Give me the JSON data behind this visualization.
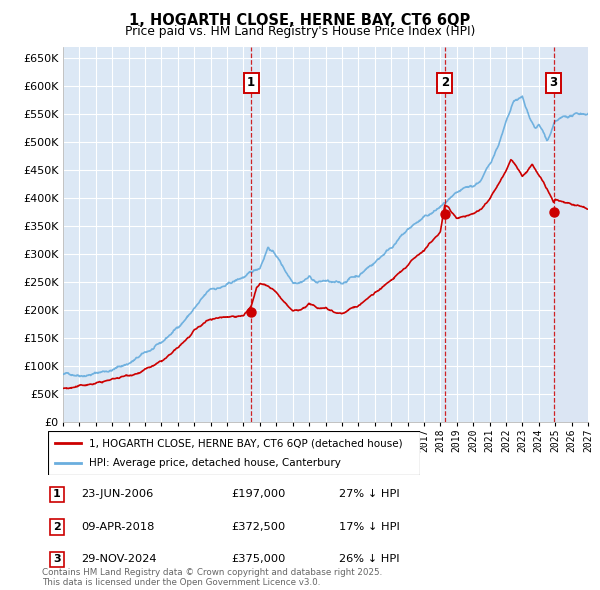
{
  "title": "1, HOGARTH CLOSE, HERNE BAY, CT6 6QP",
  "subtitle": "Price paid vs. HM Land Registry's House Price Index (HPI)",
  "ylabel_values": [
    0,
    50000,
    100000,
    150000,
    200000,
    250000,
    300000,
    350000,
    400000,
    450000,
    500000,
    550000,
    600000,
    650000
  ],
  "ylim": [
    0,
    670000
  ],
  "xlim_start": 1995.0,
  "xlim_end": 2027.0,
  "sale_dates": [
    2006.47,
    2018.27,
    2024.91
  ],
  "sale_prices": [
    197000,
    372500,
    375000
  ],
  "sale_labels": [
    "1",
    "2",
    "3"
  ],
  "sale_info": [
    {
      "label": "1",
      "date": "23-JUN-2006",
      "price": "£197,000",
      "pct": "27% ↓ HPI"
    },
    {
      "label": "2",
      "date": "09-APR-2018",
      "price": "£372,500",
      "pct": "17% ↓ HPI"
    },
    {
      "label": "3",
      "date": "29-NOV-2024",
      "price": "£375,000",
      "pct": "26% ↓ HPI"
    }
  ],
  "legend_line1": "1, HOGARTH CLOSE, HERNE BAY, CT6 6QP (detached house)",
  "legend_line2": "HPI: Average price, detached house, Canterbury",
  "footnote": "Contains HM Land Registry data © Crown copyright and database right 2025.\nThis data is licensed under the Open Government Licence v3.0.",
  "bg_color": "#dce8f5",
  "hpi_color": "#6aaede",
  "price_color": "#cc0000",
  "grid_color": "#ffffff",
  "hatch_bg": "#c8d8ee"
}
